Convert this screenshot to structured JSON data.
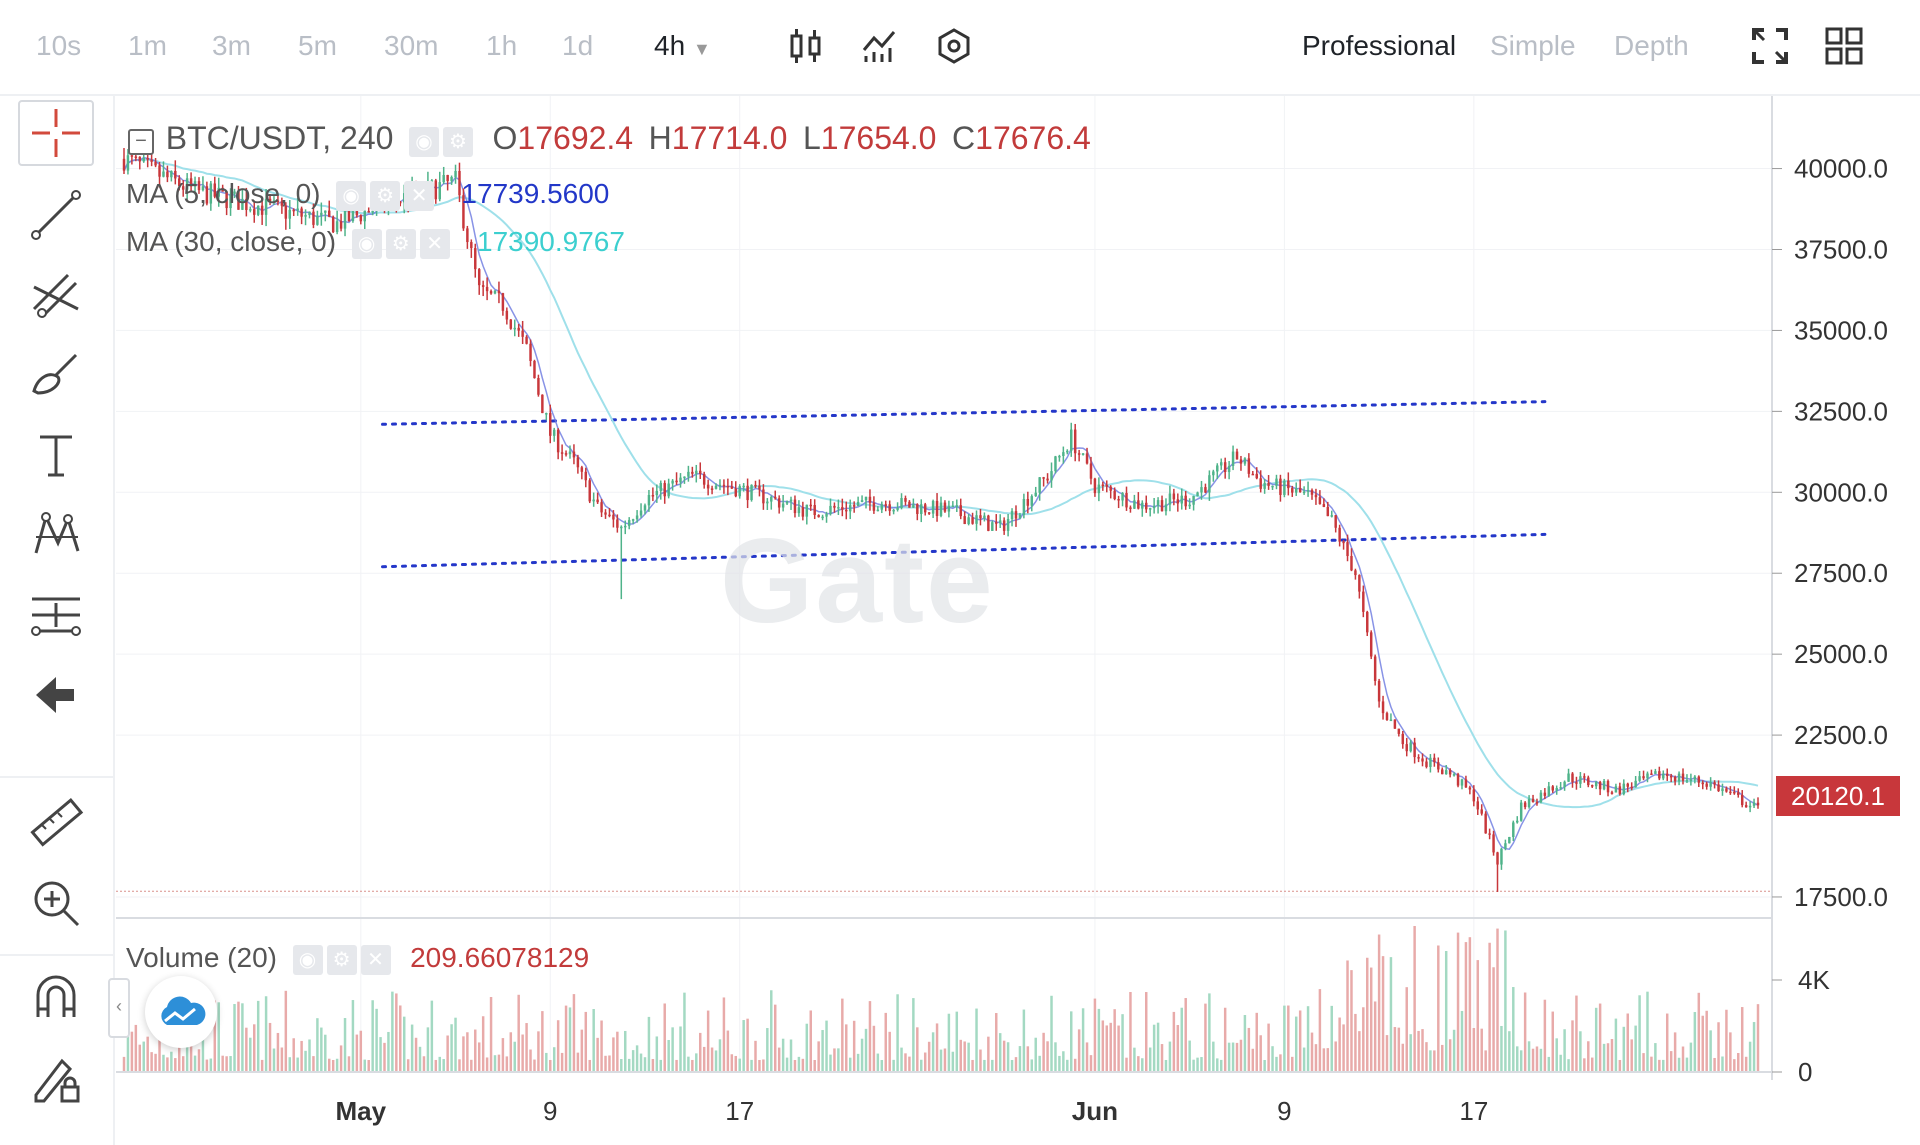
{
  "toolbar": {
    "timeframes": [
      "10s",
      "1m",
      "3m",
      "5m",
      "30m",
      "1h",
      "1d",
      "4h"
    ],
    "active_timeframe": "4h",
    "modes": [
      "Professional",
      "Simple",
      "Depth"
    ],
    "active_mode": "Professional",
    "icons": [
      "candlestick-icon",
      "indicator-icon",
      "settings-hex-icon",
      "fullscreen-icon",
      "grid-layout-icon"
    ]
  },
  "sidebar": {
    "tools": [
      "crosshair-icon",
      "trendline-icon",
      "fib-lines-icon",
      "brush-icon",
      "text-icon",
      "pattern-icon",
      "measure-lines-icon",
      "back-arrow-icon",
      "ruler-icon",
      "zoom-in-icon",
      "magnet-icon",
      "lock-pencil-icon"
    ]
  },
  "legend": {
    "symbol": "BTC/USDT, 240",
    "o_label": "O",
    "o": "17692.4",
    "h_label": "H",
    "h": "17714.0",
    "l_label": "L",
    "l": "17654.0",
    "c_label": "C",
    "c": "17676.4",
    "ma1_label": "MA (5, close, 0)",
    "ma1_value": "17739.5600",
    "ma2_label": "MA (30, close, 0)",
    "ma2_value": "17390.9767",
    "volume_label": "Volume (20)",
    "volume_value": "209.66078129"
  },
  "current_price": "20120.1",
  "watermark": "Gate",
  "colors": {
    "up": "#4fb38a",
    "down": "#c8373b",
    "ma5": "#6a78e0",
    "ma30": "#9fe0ea",
    "level": "#2437c9"
  },
  "chart_data": {
    "type": "candlestick",
    "title": "BTC/USDT, 240",
    "price_axis": {
      "ticks": [
        40000,
        37500,
        35000,
        32500,
        30000,
        27500,
        25000,
        22500,
        17500
      ],
      "range": [
        16850,
        41500
      ]
    },
    "volume_axis": {
      "ticks": [
        "4K",
        "0"
      ]
    },
    "date_ticks": [
      {
        "label": "May",
        "date": "2022-05-01",
        "bold": true
      },
      {
        "label": "9",
        "date": "2022-05-09",
        "bold": false
      },
      {
        "label": "17",
        "date": "2022-05-17",
        "bold": false
      },
      {
        "label": "Jun",
        "date": "2022-06-01",
        "bold": true
      },
      {
        "label": "9",
        "date": "2022-06-09",
        "bold": false
      },
      {
        "label": "17",
        "date": "2022-06-17",
        "bold": false
      }
    ],
    "price_series_approx": [
      [
        "2022-04-21",
        40300
      ],
      [
        "2022-04-24",
        39300
      ],
      [
        "2022-04-27",
        38800
      ],
      [
        "2022-04-30",
        38300
      ],
      [
        "2022-05-02",
        38900
      ],
      [
        "2022-05-05",
        39600
      ],
      [
        "2022-05-06",
        36200
      ],
      [
        "2022-05-07",
        35800
      ],
      [
        "2022-05-08",
        34400
      ],
      [
        "2022-05-09",
        31800
      ],
      [
        "2022-05-10",
        30900
      ],
      [
        "2022-05-11",
        29500
      ],
      [
        "2022-05-12",
        28900
      ],
      [
        "2022-05-13",
        29800
      ],
      [
        "2022-05-15",
        30500
      ],
      [
        "2022-05-17",
        30100
      ],
      [
        "2022-05-20",
        29400
      ],
      [
        "2022-05-23",
        29700
      ],
      [
        "2022-05-26",
        29400
      ],
      [
        "2022-05-28",
        28900
      ],
      [
        "2022-05-30",
        30500
      ],
      [
        "2022-05-31",
        31700
      ],
      [
        "2022-06-01",
        30200
      ],
      [
        "2022-06-03",
        29600
      ],
      [
        "2022-06-05",
        29800
      ],
      [
        "2022-06-07",
        31100
      ],
      [
        "2022-06-08",
        30300
      ],
      [
        "2022-06-10",
        29900
      ],
      [
        "2022-06-11",
        29100
      ],
      [
        "2022-06-12",
        27500
      ],
      [
        "2022-06-13",
        23500
      ],
      [
        "2022-06-14",
        22300
      ],
      [
        "2022-06-15",
        21700
      ],
      [
        "2022-06-16",
        21300
      ],
      [
        "2022-06-17",
        20600
      ],
      [
        "2022-06-18",
        18600
      ],
      [
        "2022-06-19",
        20300
      ],
      [
        "2022-06-21",
        21200
      ],
      [
        "2022-06-23",
        20800
      ],
      [
        "2022-06-25",
        21300
      ],
      [
        "2022-06-27",
        21000
      ],
      [
        "2022-06-29",
        20200
      ]
    ],
    "extremes": {
      "low": 17654,
      "low_date": "2022-06-18",
      "spike_low": 26700,
      "spike_low_date": "2022-05-12"
    },
    "annotations": {
      "upper_channel": [
        [
          "2022-05-02",
          32100
        ],
        [
          "2022-06-20",
          32800
        ]
      ],
      "lower_channel": [
        [
          "2022-05-02",
          27700
        ],
        [
          "2022-06-20",
          28700
        ]
      ],
      "horizontal_level": 17676.4
    }
  }
}
